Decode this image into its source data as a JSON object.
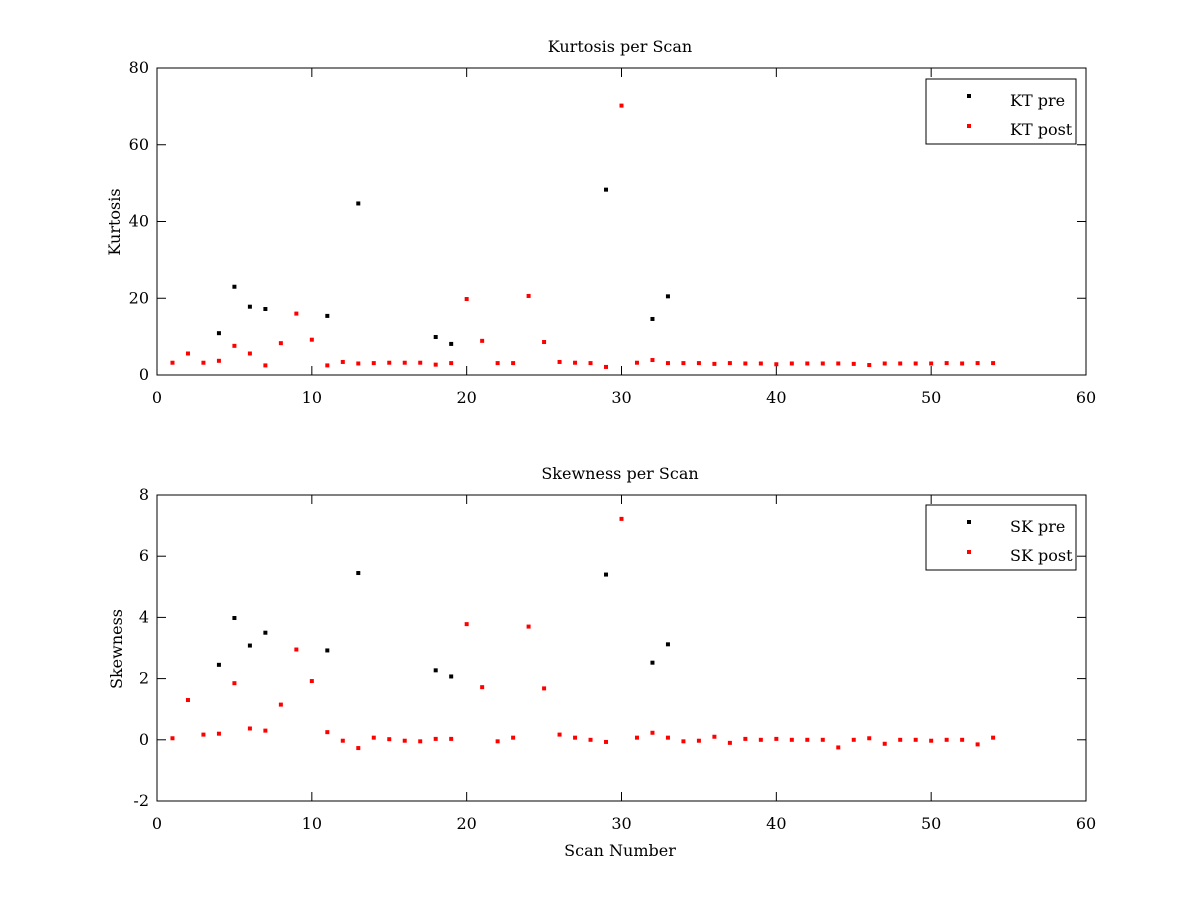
{
  "chart_data": [
    {
      "type": "scatter",
      "title": "Kurtosis per Scan",
      "xlabel": "",
      "ylabel": "Kurtosis",
      "xlim": [
        0,
        60
      ],
      "ylim": [
        0,
        80
      ],
      "xticks": [
        0,
        10,
        20,
        30,
        40,
        50,
        60
      ],
      "yticks": [
        0,
        20,
        40,
        60,
        80
      ],
      "grid": false,
      "legend_position": "top-right",
      "series": [
        {
          "name": "KT pre",
          "color": "#000000",
          "x": [
            4,
            5,
            6,
            7,
            11,
            13,
            18,
            19,
            29,
            32,
            33
          ],
          "y": [
            10.9,
            23.0,
            17.8,
            17.2,
            15.4,
            44.7,
            9.9,
            8.1,
            48.3,
            14.6,
            20.5
          ]
        },
        {
          "name": "KT post",
          "color": "#ff0000",
          "x": [
            1,
            2,
            3,
            4,
            5,
            6,
            7,
            8,
            9,
            10,
            11,
            12,
            13,
            14,
            15,
            16,
            17,
            18,
            19,
            20,
            21,
            22,
            23,
            24,
            25,
            26,
            27,
            28,
            29,
            30,
            31,
            32,
            33,
            34,
            35,
            36,
            37,
            38,
            39,
            40,
            41,
            42,
            43,
            44,
            45,
            46,
            47,
            48,
            49,
            50,
            51,
            52,
            53,
            54
          ],
          "y": [
            3.2,
            5.6,
            3.2,
            3.7,
            7.6,
            5.6,
            2.5,
            8.3,
            16.0,
            9.2,
            2.5,
            3.4,
            3.0,
            3.1,
            3.2,
            3.2,
            3.2,
            2.7,
            3.1,
            19.8,
            8.9,
            3.1,
            3.1,
            20.6,
            8.6,
            3.4,
            3.2,
            3.1,
            2.1,
            70.2,
            3.2,
            3.9,
            3.1,
            3.1,
            3.1,
            2.9,
            3.1,
            3.0,
            3.0,
            2.8,
            3.0,
            3.0,
            3.0,
            3.0,
            2.9,
            2.6,
            3.0,
            3.0,
            3.0,
            3.0,
            3.1,
            3.0,
            3.1,
            3.1
          ]
        }
      ]
    },
    {
      "type": "scatter",
      "title": "Skewness per Scan",
      "xlabel": "Scan Number",
      "ylabel": "Skewness",
      "xlim": [
        0,
        60
      ],
      "ylim": [
        -2,
        8
      ],
      "xticks": [
        0,
        10,
        20,
        30,
        40,
        50,
        60
      ],
      "yticks": [
        -2,
        0,
        2,
        4,
        6,
        8
      ],
      "grid": false,
      "legend_position": "top-right",
      "series": [
        {
          "name": "SK pre",
          "color": "#000000",
          "x": [
            4,
            5,
            6,
            7,
            11,
            13,
            18,
            19,
            29,
            32,
            33
          ],
          "y": [
            2.45,
            3.98,
            3.08,
            3.5,
            2.92,
            5.45,
            2.27,
            2.07,
            5.4,
            2.52,
            3.12
          ]
        },
        {
          "name": "SK post",
          "color": "#ff0000",
          "x": [
            1,
            2,
            3,
            4,
            5,
            6,
            7,
            8,
            9,
            10,
            11,
            12,
            13,
            14,
            15,
            16,
            17,
            18,
            19,
            20,
            21,
            22,
            23,
            24,
            25,
            26,
            27,
            28,
            29,
            30,
            31,
            32,
            33,
            34,
            35,
            36,
            37,
            38,
            39,
            40,
            41,
            42,
            43,
            44,
            45,
            46,
            47,
            48,
            49,
            50,
            51,
            52,
            53,
            54
          ],
          "y": [
            0.05,
            1.3,
            0.17,
            0.2,
            1.85,
            0.37,
            0.3,
            1.15,
            2.95,
            1.92,
            0.25,
            -0.03,
            -0.27,
            0.07,
            0.02,
            -0.03,
            -0.05,
            0.03,
            0.03,
            3.78,
            1.72,
            -0.05,
            0.07,
            3.7,
            1.68,
            0.17,
            0.07,
            0.0,
            -0.07,
            7.22,
            0.07,
            0.23,
            0.07,
            -0.05,
            -0.03,
            0.1,
            -0.1,
            0.03,
            0.0,
            0.03,
            0.0,
            0.0,
            0.0,
            -0.25,
            0.0,
            0.05,
            -0.13,
            0.0,
            0.0,
            -0.03,
            0.0,
            0.0,
            -0.15,
            0.07
          ]
        }
      ]
    }
  ]
}
